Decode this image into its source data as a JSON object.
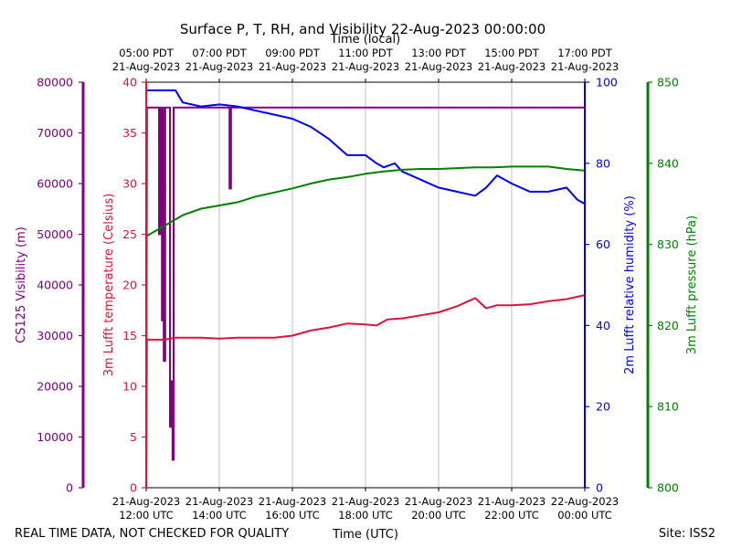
{
  "chart_data": {
    "type": "line",
    "title": "Surface P, T, RH, and Visibility 22-Aug-2023 00:00:00",
    "top_axis_label": "Time (local)",
    "xlabel": "Time (UTC)",
    "footer_left": "REAL TIME DATA, NOT CHECKED FOR QUALITY",
    "footer_right": "Site: ISS2",
    "x_hours": [
      12,
      14,
      16,
      18,
      20,
      22,
      24
    ],
    "x_tick_labels_utc": [
      [
        "21-Aug-2023",
        "12:00 UTC"
      ],
      [
        "21-Aug-2023",
        "14:00 UTC"
      ],
      [
        "21-Aug-2023",
        "16:00 UTC"
      ],
      [
        "21-Aug-2023",
        "18:00 UTC"
      ],
      [
        "21-Aug-2023",
        "20:00 UTC"
      ],
      [
        "21-Aug-2023",
        "22:00 UTC"
      ],
      [
        "22-Aug-2023",
        "00:00 UTC"
      ]
    ],
    "x_tick_labels_local": [
      [
        "05:00 PDT",
        "21-Aug-2023"
      ],
      [
        "07:00 PDT",
        "21-Aug-2023"
      ],
      [
        "09:00 PDT",
        "21-Aug-2023"
      ],
      [
        "11:00 PDT",
        "21-Aug-2023"
      ],
      [
        "13:00 PDT",
        "21-Aug-2023"
      ],
      [
        "15:00 PDT",
        "21-Aug-2023"
      ],
      [
        "17:00 PDT",
        "21-Aug-2023"
      ]
    ],
    "xlim": [
      12,
      24
    ],
    "axes": {
      "visibility": {
        "label": "CS125 Visibility (m)",
        "ylim": [
          0,
          80000
        ],
        "ticks": [
          0,
          10000,
          20000,
          30000,
          40000,
          50000,
          60000,
          70000,
          80000
        ],
        "color": "#800080"
      },
      "temperature": {
        "label": "3m Lufft temperature (Celsius)",
        "ylim": [
          0,
          40
        ],
        "ticks": [
          0,
          5,
          10,
          15,
          20,
          25,
          30,
          35,
          40
        ],
        "color": "#dc143c"
      },
      "humidity": {
        "label": "2m Lufft relative humidity (%)",
        "ylim": [
          0,
          100
        ],
        "ticks": [
          0,
          20,
          40,
          60,
          80,
          100
        ],
        "color": "#0000ff"
      },
      "pressure": {
        "label": "3m Lufft pressure (hPa)",
        "ylim": [
          800,
          850
        ],
        "ticks": [
          800,
          810,
          820,
          830,
          840,
          850
        ],
        "color": "#008000"
      }
    },
    "series": [
      {
        "name": "CS125 Visibility",
        "axis": "visibility",
        "color": "#800080",
        "x": [
          12.0,
          12.02,
          12.02,
          12.05,
          12.35,
          12.35,
          12.38,
          12.38,
          12.43,
          12.43,
          12.46,
          12.46,
          12.48,
          12.48,
          12.52,
          12.52,
          12.58,
          12.58,
          12.65,
          12.65,
          12.68,
          12.68,
          12.72,
          12.72,
          12.75,
          12.75,
          14.28,
          14.28,
          14.32,
          14.32,
          24.0
        ],
        "values": [
          0,
          75000,
          75000,
          75000,
          75000,
          50000,
          50000,
          75000,
          75000,
          33000,
          33000,
          75000,
          75000,
          25000,
          25000,
          75000,
          75000,
          75000,
          75000,
          12000,
          12000,
          21000,
          21000,
          5500,
          5500,
          75000,
          75000,
          59000,
          59000,
          75000,
          75000
        ]
      },
      {
        "name": "3m Lufft temperature",
        "axis": "temperature",
        "color": "#dc143c",
        "x": [
          12.0,
          12.02,
          12.5,
          12.8,
          13.0,
          13.5,
          14.0,
          14.5,
          15.0,
          15.5,
          16.0,
          16.5,
          17.0,
          17.5,
          18.0,
          18.3,
          18.6,
          19.0,
          19.5,
          20.0,
          20.5,
          21.0,
          21.3,
          21.6,
          22.0,
          22.5,
          23.0,
          23.5,
          24.0
        ],
        "values": [
          0,
          14.6,
          14.6,
          14.8,
          14.8,
          14.8,
          14.7,
          14.8,
          14.8,
          14.8,
          15.0,
          15.5,
          15.8,
          16.2,
          16.1,
          16.0,
          16.6,
          16.7,
          17.0,
          17.3,
          17.9,
          18.7,
          17.7,
          18.0,
          18.0,
          18.1,
          18.4,
          18.6,
          19.0
        ]
      },
      {
        "name": "2m Lufft relative humidity",
        "axis": "humidity",
        "color": "#0000ff",
        "x": [
          12.0,
          12.0,
          12.8,
          13.0,
          13.5,
          14.0,
          14.5,
          15.0,
          15.5,
          16.0,
          16.5,
          17.0,
          17.5,
          18.0,
          18.3,
          18.5,
          18.8,
          19.0,
          19.5,
          20.0,
          20.5,
          21.0,
          21.3,
          21.6,
          22.0,
          22.5,
          23.0,
          23.5,
          23.8,
          24.0
        ],
        "values": [
          0,
          98,
          98,
          95,
          94,
          94.5,
          94,
          93,
          92,
          91,
          89,
          86,
          82,
          82,
          80,
          79,
          80,
          78,
          76,
          74,
          73,
          72,
          74,
          77,
          75,
          73,
          73,
          74,
          71,
          70
        ]
      },
      {
        "name": "3m Lufft pressure",
        "axis": "pressure",
        "color": "#008000",
        "x": [
          12.0,
          12.0,
          12.5,
          13.0,
          13.5,
          14.0,
          14.5,
          15.0,
          15.5,
          16.0,
          16.5,
          17.0,
          17.5,
          18.0,
          18.5,
          19.0,
          19.5,
          20.0,
          20.5,
          21.0,
          21.5,
          22.0,
          22.5,
          23.0,
          23.5,
          24.0
        ],
        "values": [
          800,
          831,
          832.3,
          833.6,
          834.4,
          834.8,
          835.2,
          835.9,
          836.4,
          836.9,
          837.5,
          838,
          838.3,
          838.7,
          839.0,
          839.2,
          839.3,
          839.3,
          839.4,
          839.5,
          839.5,
          839.6,
          839.6,
          839.6,
          839.3,
          839.1
        ]
      }
    ]
  }
}
